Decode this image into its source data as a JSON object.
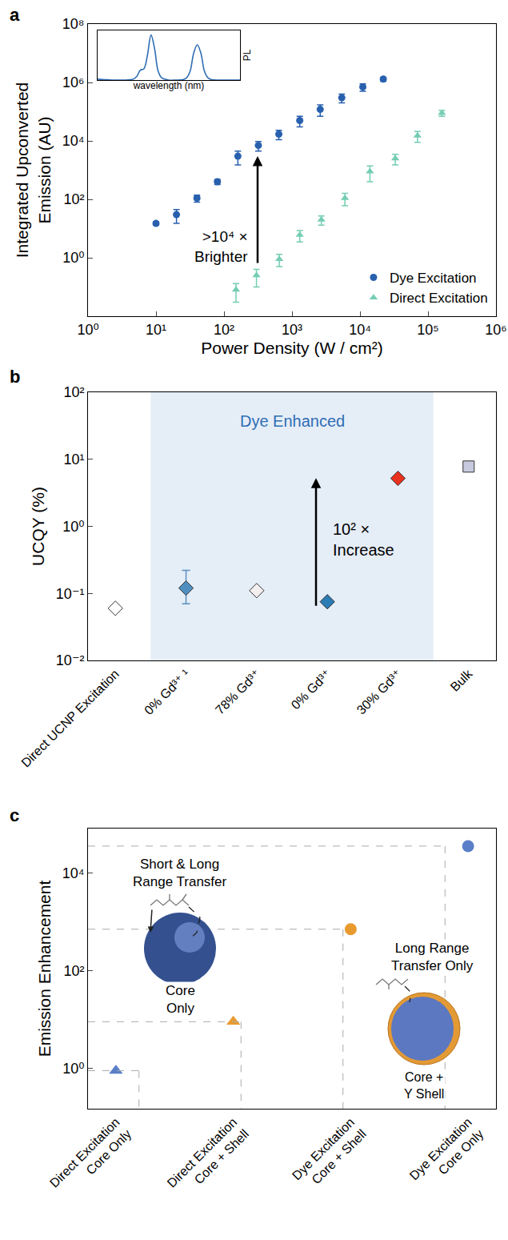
{
  "chart_data": [
    {
      "label": "a",
      "type": "scatter",
      "x_label": "Power Density (W / cm²)",
      "y_label": "Integrated Upconverted Emission (AU)",
      "log": true,
      "grid": false,
      "legend": "bottom right",
      "xlim": [
        1,
        1000000
      ],
      "ylim": [
        0.01,
        100000000
      ],
      "xticks": [
        {
          "value": 1,
          "label": "10⁰"
        },
        {
          "value": 10,
          "label": "10¹"
        },
        {
          "value": 100,
          "label": "10²"
        },
        {
          "value": 1000,
          "label": "10³"
        },
        {
          "value": 10000,
          "label": "10⁴"
        },
        {
          "value": 100000,
          "label": "10⁵"
        },
        {
          "value": 1000000,
          "label": "10⁶"
        }
      ],
      "yticks": [
        {
          "value": 1,
          "label": "10⁰"
        },
        {
          "value": 100,
          "label": "10²"
        },
        {
          "value": 10000,
          "label": "10⁴"
        },
        {
          "value": 1000000,
          "label": "10⁶"
        },
        {
          "value": 100000000,
          "label": "10⁸"
        }
      ],
      "annotations": [
        {
          "text": ">10⁴ × Brighter"
        }
      ],
      "series": [
        {
          "name": "Dye Excitation",
          "color": "#2860ae",
          "marker": "circle",
          "x": [
            10,
            20,
            40,
            80,
            160,
            320,
            640,
            1300,
            2600,
            5400,
            11000,
            22000
          ],
          "values": [
            15,
            30,
            110,
            400,
            3000,
            7000,
            17000,
            50000,
            120000,
            300000,
            700000,
            1300000
          ],
          "error": [
            2,
            15,
            30,
            80,
            1500,
            2500,
            6000,
            20000,
            50000,
            100000,
            200000,
            200000
          ]
        },
        {
          "name": "Direct Excitation",
          "color": "#74cdb3",
          "marker": "triangle",
          "x": [
            150,
            300,
            650,
            1300,
            2700,
            6000,
            14000,
            33000,
            70000,
            160000
          ],
          "values": [
            0.08,
            0.25,
            0.9,
            6,
            20,
            110,
            900,
            2500,
            15000,
            90000
          ],
          "error": [
            0.05,
            0.15,
            0.4,
            2.5,
            7,
            50,
            500,
            1000,
            6000,
            20000
          ]
        }
      ]
    },
    {
      "type": "line",
      "x_label": "wavelength (nm)",
      "y_label": "PL",
      "tick_labels": false,
      "grid": false,
      "color": "#2e6db4",
      "xlim": [
        0,
        40
      ],
      "ylim": [
        0,
        1.1
      ],
      "x": [
        0,
        2,
        4,
        6,
        8,
        10,
        11,
        12,
        13,
        14,
        15,
        16,
        17,
        18,
        20,
        22,
        24,
        25,
        26,
        27,
        28,
        29,
        30,
        31,
        32,
        34,
        36,
        38,
        40
      ],
      "values": [
        0.02,
        0.01,
        0,
        0,
        0,
        0.02,
        0.08,
        0.22,
        0.25,
        0.55,
        1,
        0.7,
        0.2,
        0.05,
        0,
        0,
        0.01,
        0.05,
        0.2,
        0.6,
        0.78,
        0.6,
        0.2,
        0.05,
        0.01,
        0,
        0,
        0,
        0
      ]
    },
    {
      "label": "b",
      "type": "scatter",
      "y_label": "UCQY (%)",
      "log": "y",
      "grid": false,
      "ylim": [
        0.01,
        100
      ],
      "yticks": [
        {
          "value": 0.01,
          "label": "10⁻²"
        },
        {
          "value": 0.1,
          "label": "10⁻¹"
        },
        {
          "value": 1,
          "label": "10⁰"
        },
        {
          "value": 10,
          "label": "10¹"
        },
        {
          "value": 100,
          "label": "10²"
        }
      ],
      "categories": [
        "Direct UCNP Excitation",
        "0% Gd³⁺ ¹",
        "78% Gd³⁺",
        "0% Gd³⁺",
        "30% Gd³⁺",
        "Bulk"
      ],
      "annotations": [
        {
          "text": "Dye Enhanced"
        },
        {
          "text": "10² × Increase"
        }
      ],
      "series": [
        {
          "marker": "diamond",
          "colors": [
            "#ffffff",
            "#4f8fc0",
            "#f3eef0",
            "#2b7bb5",
            "#e8311f",
            null
          ],
          "values": [
            0.06,
            0.12,
            0.11,
            0.075,
            5.2,
            null
          ],
          "error_upper": [
            null,
            0.1,
            null,
            null,
            null,
            null
          ],
          "error_lower": [
            null,
            0.05,
            null,
            null,
            null,
            null
          ]
        },
        {
          "marker": "square",
          "color": "#c7cadf",
          "values": [
            null,
            null,
            null,
            null,
            null,
            7.8
          ]
        }
      ]
    },
    {
      "label": "c",
      "type": "scatter",
      "y_label": "Emission Enhancement",
      "log": "y",
      "grid": false,
      "ylim": [
        0.15,
        80000
      ],
      "yticks": [
        {
          "value": 1,
          "label": "10⁰"
        },
        {
          "value": 100,
          "label": "10²"
        },
        {
          "value": 10000,
          "label": "10⁴"
        }
      ],
      "categories": [
        "Direct Excitation Core Only",
        "Direct Excitation Core + Shell",
        "Dye Excitation Core + Shell",
        "Dye Excitation Core Only"
      ],
      "annotations": [
        {
          "text": "Short & Long Range Transfer"
        },
        {
          "text": "Core Only"
        },
        {
          "text": "Long Range Transfer Only"
        },
        {
          "text": "Core + Y Shell"
        }
      ],
      "series": [
        {
          "marker": "triangle",
          "colors": [
            "#5a7fc8",
            "#e89a2e",
            null,
            null
          ],
          "values": [
            0.9,
            9,
            null,
            null
          ]
        },
        {
          "marker": "circle",
          "colors": [
            null,
            null,
            "#e89a2e",
            "#5a7fc8"
          ],
          "values": [
            null,
            null,
            700,
            35000
          ]
        }
      ]
    }
  ]
}
